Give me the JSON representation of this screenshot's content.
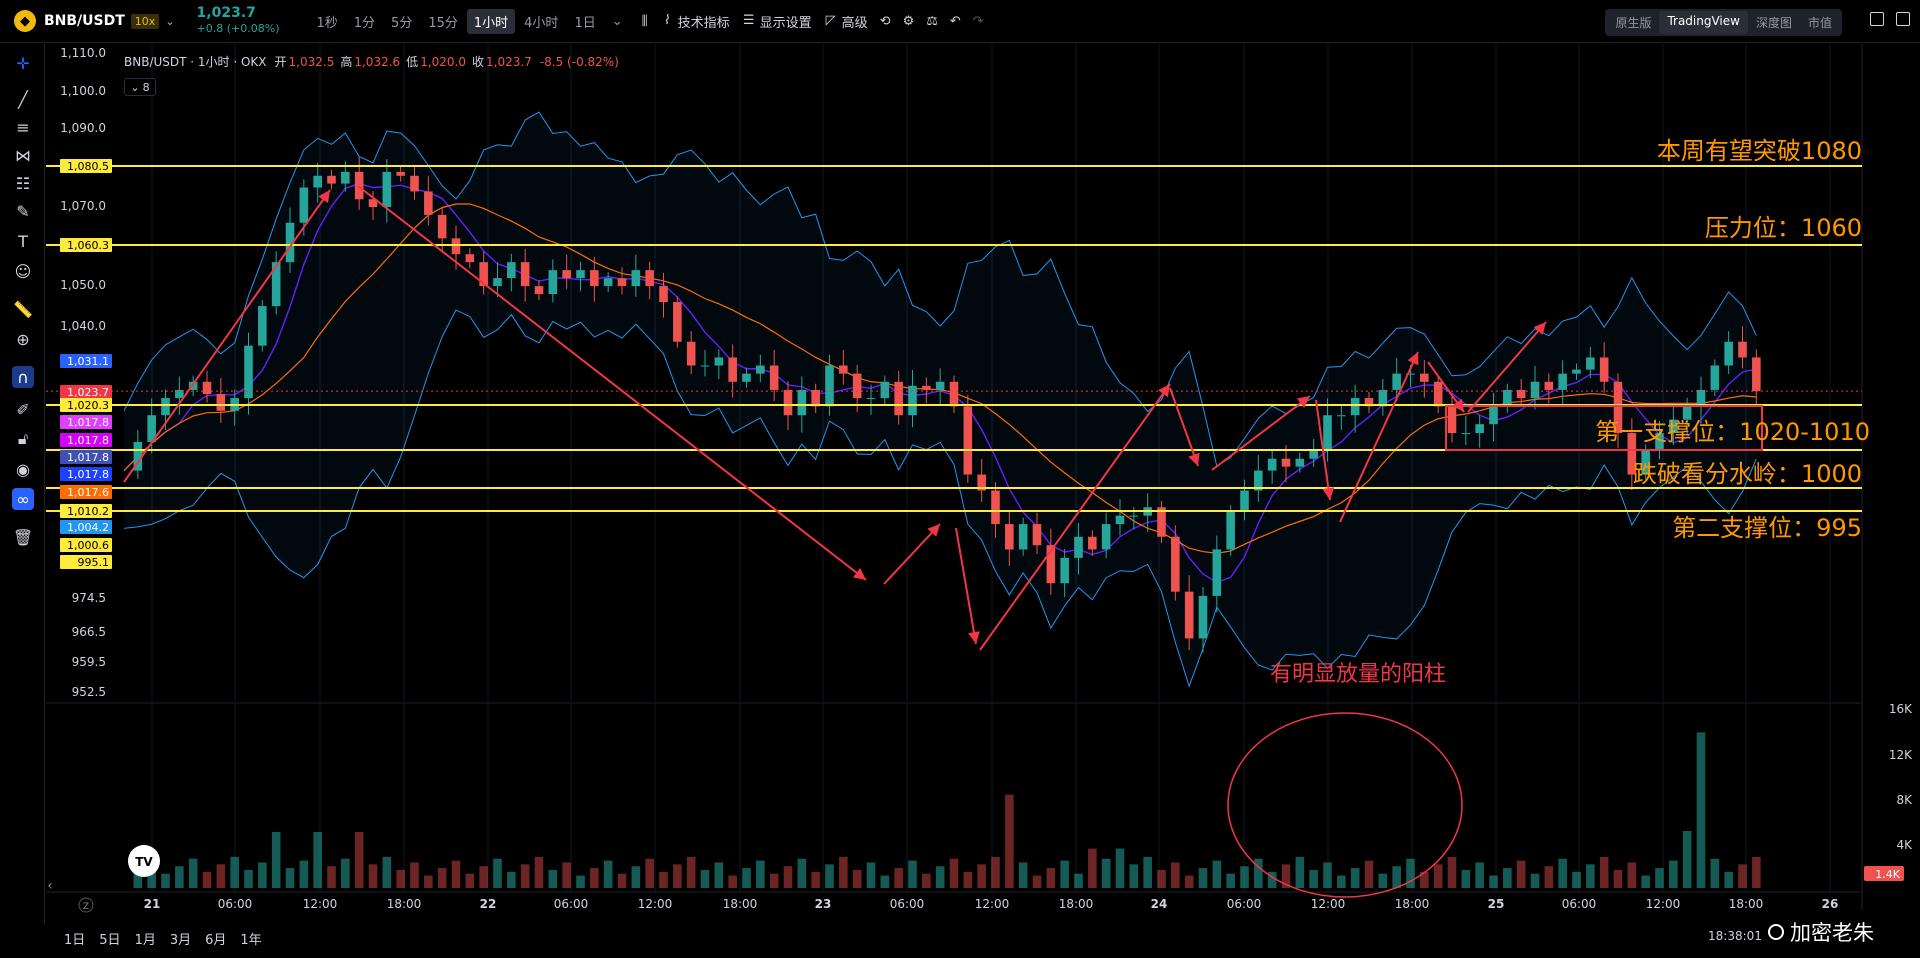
{
  "header": {
    "symbol": "BNB/USDT",
    "leverage": "10x",
    "price": "1,023.7",
    "change": "+0.8 (+0.08%)",
    "intervals": [
      "1秒",
      "1分",
      "5分",
      "15分",
      "1小时",
      "4小时",
      "1日"
    ],
    "active_interval": "1小时",
    "indicators_label": "技术指标",
    "display_settings_label": "显示设置",
    "advanced_label": "高级",
    "views": [
      "原生版",
      "TradingView",
      "深度图",
      "市值"
    ],
    "active_view": "TradingView"
  },
  "legend": {
    "title": "BNB/USDT · 1小时 · OKX",
    "open_label": "开",
    "open": "1,032.5",
    "high_label": "高",
    "high": "1,032.6",
    "low_label": "低",
    "low": "1,020.0",
    "close_label": "收",
    "close": "1,023.7",
    "change": "-8.5 (-0.82%)",
    "indicator_count": "8"
  },
  "price_axis": {
    "ticks": [
      "1,110.0",
      "1,100.0",
      "1,090.0",
      "1,070.0",
      "1,050.0",
      "1,040.0",
      "974.5",
      "966.5",
      "959.5",
      "952.5"
    ],
    "tags": [
      {
        "text": "1,080.5",
        "color": "#ffeb3b",
        "fg": "#000"
      },
      {
        "text": "1,060.3",
        "color": "#ffeb3b",
        "fg": "#000"
      },
      {
        "text": "1,031.1",
        "color": "#2962ff",
        "fg": "#fff"
      },
      {
        "text": "1,023.7",
        "color": "#f23645",
        "fg": "#fff"
      },
      {
        "text": "1,020.3",
        "color": "#ffeb3b",
        "fg": "#000"
      },
      {
        "text": "1,017.8",
        "color": "#e040fb",
        "fg": "#fff"
      },
      {
        "text": "1,017.8",
        "color": "#d500f9",
        "fg": "#fff"
      },
      {
        "text": "1,017.8",
        "color": "#3f51b5",
        "fg": "#fff"
      },
      {
        "text": "1,017.8",
        "color": "#1e40ff",
        "fg": "#fff"
      },
      {
        "text": "1,017.6",
        "color": "#ff6d00",
        "fg": "#fff"
      },
      {
        "text": "1,010.2",
        "color": "#ffeb3b",
        "fg": "#000"
      },
      {
        "text": "1,004.2",
        "color": "#2196f3",
        "fg": "#fff"
      },
      {
        "text": "1,000.6",
        "color": "#ffeb3b",
        "fg": "#000"
      },
      {
        "text": "995.1",
        "color": "#ffeb3b",
        "fg": "#000"
      }
    ]
  },
  "volume_axis": {
    "ticks": [
      "16K",
      "12K",
      "8K",
      "4K"
    ],
    "current": "1.4K"
  },
  "time_axis": [
    "21",
    "06:00",
    "12:00",
    "18:00",
    "22",
    "06:00",
    "12:00",
    "18:00",
    "23",
    "06:00",
    "12:00",
    "18:00",
    "24",
    "06:00",
    "12:00",
    "18:00",
    "25",
    "06:00",
    "12:00",
    "18:00",
    "26"
  ],
  "annotations": {
    "line1080": "本周有望突破1080",
    "line1060": "压力位：1060",
    "support1": "第一支撑位：1020-1010",
    "pivot": "跌破看分水岭：1000",
    "support2": "第二支撑位：995",
    "volume_note": "有明显放量的阳柱"
  },
  "bottom": {
    "ranges": [
      "1日",
      "5日",
      "1月",
      "3月",
      "6月",
      "1年"
    ],
    "clock": "18:38:01",
    "watermark": "加密老朱"
  },
  "colors": {
    "up": "#26a69a",
    "down": "#ef5350",
    "level": "#ffeb3b",
    "annotation": "#ff9800",
    "arrow": "#f23645"
  },
  "chart_data": {
    "type": "candlestick",
    "close_sequence_note": "",
    "levels": [
      1080.5,
      1060.3,
      1020.3,
      1010.2,
      1000.6,
      995.1
    ]
  }
}
